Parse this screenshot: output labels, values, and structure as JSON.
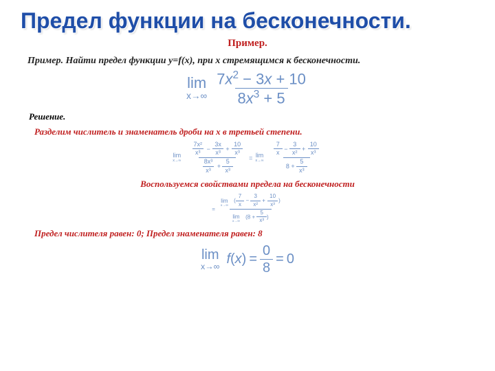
{
  "title": "Предел функции на бесконечности.",
  "subtitle": "Пример.",
  "problem": "Пример. Найти предел функции y=f(x), при x стремящимся к бесконечности.",
  "solution_label": "Решение.",
  "step1": "Разделим числитель и знаменатель дроби на x в третьей степени.",
  "step2": "Воспользуемся свойствами предела на бесконечности",
  "step3": "Предел числителя равен: 0; Предел знаменателя равен: 8",
  "colors": {
    "title": "#1f4ea8",
    "red": "#c02020",
    "math": "#6b8fc5",
    "background": "#ffffff"
  },
  "formula_main": {
    "lim_text": "lim",
    "lim_sub": "x→∞",
    "numerator": "7x² − 3x + 10",
    "denominator": "8x³ + 5",
    "fontsize": 22
  },
  "formula_divide": {
    "lim_text": "lim",
    "lim_sub": "x→∞",
    "left_num_terms": [
      "7x²/x³",
      "3x/x³",
      "10/x³"
    ],
    "left_den_terms": [
      "8x³/x³",
      "5/x³"
    ],
    "right_num": "7/x − 3/x² + 10/x³",
    "right_den": "8 + 5/x³",
    "fontsize": 9
  },
  "formula_prop": {
    "num": "lim(7/x − 3/x² + 10/x³)",
    "den": "lim(8 + 5/x³)",
    "sub": "x→∞",
    "fontsize": 8
  },
  "formula_result": {
    "lim_text": "lim",
    "lim_sub": "x→∞",
    "fx": "f(x)",
    "frac_num": "0",
    "frac_den": "8",
    "result": "0",
    "fontsize": 20
  }
}
